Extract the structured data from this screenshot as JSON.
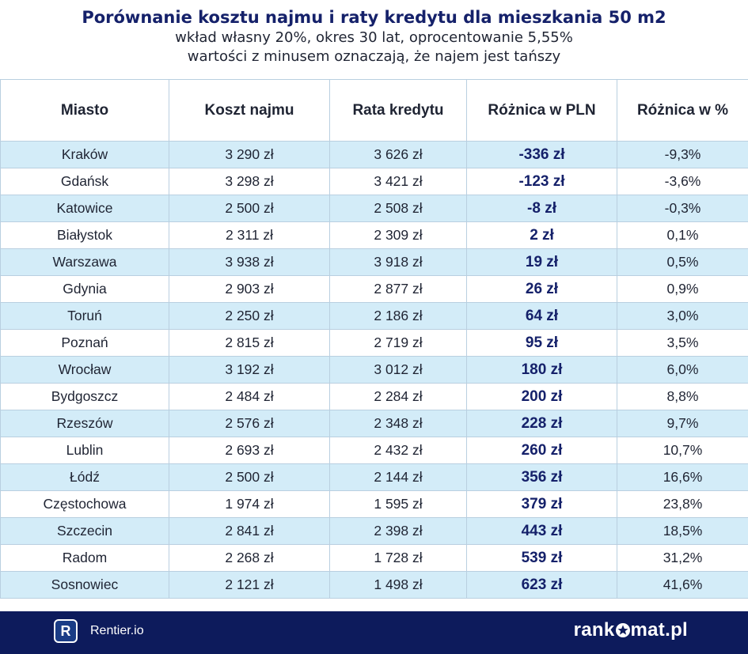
{
  "title": "Porównanie kosztu najmu i raty kredytu dla mieszkania 50 m2",
  "subtitle_line1": "wkład własny 20%, okres 30 lat, oprocentowanie 5,55%",
  "subtitle_line2": "wartości z minusem oznaczają, że najem jest tańszy",
  "columns": [
    "Miasto",
    "Koszt najmu",
    "Rata kredytu",
    "Różnica w PLN",
    "Różnica w %"
  ],
  "chart_data": {
    "type": "table",
    "columns": [
      "Miasto",
      "Koszt najmu",
      "Rata kredytu",
      "Różnica w PLN",
      "Różnica w %"
    ],
    "rows": [
      [
        "Kraków",
        "3 290 zł",
        "3 626 zł",
        "-336 zł",
        "-9,3%"
      ],
      [
        "Gdańsk",
        "3 298 zł",
        "3 421 zł",
        "-123 zł",
        "-3,6%"
      ],
      [
        "Katowice",
        "2 500 zł",
        "2 508 zł",
        "-8 zł",
        "-0,3%"
      ],
      [
        "Białystok",
        "2 311 zł",
        "2 309 zł",
        "2 zł",
        "0,1%"
      ],
      [
        "Warszawa",
        "3 938 zł",
        "3 918 zł",
        "19 zł",
        "0,5%"
      ],
      [
        "Gdynia",
        "2 903 zł",
        "2 877 zł",
        "26 zł",
        "0,9%"
      ],
      [
        "Toruń",
        "2 250 zł",
        "2 186 zł",
        "64 zł",
        "3,0%"
      ],
      [
        "Poznań",
        "2 815 zł",
        "2 719 zł",
        "95 zł",
        "3,5%"
      ],
      [
        "Wrocław",
        "3 192 zł",
        "3 012 zł",
        "180 zł",
        "6,0%"
      ],
      [
        "Bydgoszcz",
        "2 484 zł",
        "2 284 zł",
        "200 zł",
        "8,8%"
      ],
      [
        "Rzeszów",
        "2 576 zł",
        "2 348 zł",
        "228 zł",
        "9,7%"
      ],
      [
        "Lublin",
        "2 693 zł",
        "2 432 zł",
        "260 zł",
        "10,7%"
      ],
      [
        "Łódź",
        "2 500 zł",
        "2 144 zł",
        "356 zł",
        "16,6%"
      ],
      [
        "Częstochowa",
        "1 974 zł",
        "1 595 zł",
        "379 zł",
        "23,8%"
      ],
      [
        "Szczecin",
        "2 841 zł",
        "2 398 zł",
        "443 zł",
        "18,5%"
      ],
      [
        "Radom",
        "2 268 zł",
        "1 728 zł",
        "539 zł",
        "31,2%"
      ],
      [
        "Sosnowiec",
        "2 121 zł",
        "1 498 zł",
        "623 zł",
        "41,6%"
      ]
    ]
  },
  "footer": {
    "logo_letter": "R",
    "logo_text": "Rentier.io",
    "brand_left": "rank",
    "brand_right": "mat.pl"
  },
  "colors": {
    "header_title": "#15216a",
    "row_stripe": "#d3ecf8",
    "footer_bg": "#0d1b5c"
  }
}
